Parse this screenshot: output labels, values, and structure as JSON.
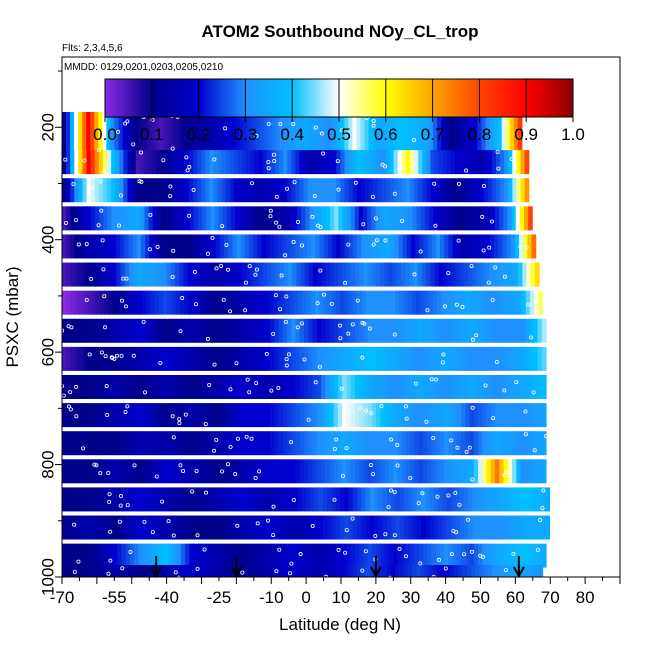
{
  "chart_data": {
    "type": "heatmap",
    "title": "ATOM2 Southbound NOy_CL_trop",
    "flights_label": "Flts: 2,3,4,5,6",
    "dates_label": "MMDD: 0129,0201,0203,0205,0210",
    "xlabel": "Latitude (deg N)",
    "ylabel": "PSXC (mbar)",
    "xlim": [
      -70,
      90
    ],
    "ylim": [
      1000,
      75
    ],
    "x_ticks": [
      -70,
      -55,
      -40,
      -25,
      -10,
      0,
      10,
      20,
      30,
      40,
      50,
      60,
      70,
      80
    ],
    "x_tick_labels": [
      "-70",
      "-55",
      "-40",
      "-25",
      "-10",
      "0",
      "10",
      "20",
      "30",
      "40",
      "50",
      "60",
      "70",
      "80"
    ],
    "y_ticks": [
      200,
      400,
      600,
      800,
      1000
    ],
    "y_tick_labels": [
      "200",
      "400",
      "600",
      "800",
      "1000"
    ],
    "colorbar": {
      "range": [
        0.0,
        1.0
      ],
      "ticks": [
        "0.0",
        "0.1",
        "0.2",
        "0.3",
        "0.4",
        "0.5",
        "0.6",
        "0.7",
        "0.8",
        "0.9",
        "1.0"
      ],
      "colors": [
        "#8a2be2",
        "#00008b",
        "#0000cd",
        "#1e90ff",
        "#00bfff",
        "#ffffff",
        "#ffff00",
        "#ffa500",
        "#ff4500",
        "#ff0000",
        "#8b0000"
      ]
    },
    "arrows_latitude": [
      -43,
      -20,
      20,
      61
    ],
    "layers": [
      {
        "p": 180,
        "lat_min": -54,
        "lat_max": -19,
        "values": [
          0.3,
          0.35,
          0.4,
          0.5,
          0.6,
          0.7,
          0.8,
          0.9,
          1.0
        ]
      },
      {
        "p": 212,
        "lat_min": -70,
        "lat_max": 63,
        "values": [
          0.1,
          0.9,
          0.3,
          0.1,
          0.05,
          0.1,
          0.15,
          0.2,
          0.25,
          0.3,
          0.35,
          0.3,
          0.5,
          0.35,
          0.4,
          0.35,
          0.1,
          0.2,
          0.4,
          0.9
        ]
      },
      {
        "p": 262,
        "lat_min": -70,
        "lat_max": 65,
        "values": [
          0.1,
          0.9,
          0.4,
          0.05,
          0.1,
          0.2,
          0.3,
          0.25,
          0.2,
          0.3,
          0.15,
          0.2,
          0.4,
          0.3,
          0.6,
          0.25,
          0.2,
          0.15,
          0.3,
          0.9
        ]
      },
      {
        "p": 312,
        "lat_min": -70,
        "lat_max": 65,
        "values": [
          0.1,
          0.5,
          0.4,
          0.1,
          0.1,
          0.2,
          0.3,
          0.2,
          0.15,
          0.2,
          0.3,
          0.3,
          0.2,
          0.25,
          0.3,
          0.2,
          0.1,
          0.2,
          0.3,
          0.8
        ]
      },
      {
        "p": 362,
        "lat_min": -70,
        "lat_max": 66,
        "values": [
          0.05,
          0.2,
          0.3,
          0.35,
          0.1,
          0.2,
          0.3,
          0.2,
          0.1,
          0.15,
          0.3,
          0.45,
          0.2,
          0.35,
          0.3,
          0.2,
          0.1,
          0.15,
          0.3,
          0.9
        ]
      },
      {
        "p": 412,
        "lat_min": -70,
        "lat_max": 67,
        "values": [
          0.05,
          0.15,
          0.2,
          0.3,
          0.1,
          0.1,
          0.2,
          0.3,
          0.2,
          0.25,
          0.3,
          0.2,
          0.3,
          0.35,
          0.2,
          0.3,
          0.15,
          0.2,
          0.3,
          0.85
        ]
      },
      {
        "p": 462,
        "lat_min": -70,
        "lat_max": 68,
        "values": [
          0.05,
          0.1,
          0.2,
          0.35,
          0.3,
          0.2,
          0.15,
          0.2,
          0.25,
          0.3,
          0.2,
          0.25,
          0.3,
          0.25,
          0.3,
          0.2,
          0.25,
          0.3,
          0.35,
          0.7
        ]
      },
      {
        "p": 512,
        "lat_min": -70,
        "lat_max": 69,
        "values": [
          0.0,
          0.05,
          0.1,
          0.2,
          0.25,
          0.2,
          0.1,
          0.15,
          0.2,
          0.25,
          0.3,
          0.25,
          0.3,
          0.3,
          0.25,
          0.3,
          0.35,
          0.3,
          0.35,
          0.6
        ]
      },
      {
        "p": 562,
        "lat_min": -70,
        "lat_max": 70,
        "values": [
          0.1,
          0.1,
          0.15,
          0.2,
          0.1,
          0.15,
          0.1,
          0.15,
          0.2,
          0.3,
          0.2,
          0.25,
          0.3,
          0.3,
          0.35,
          0.3,
          0.35,
          0.3,
          0.3,
          0.5
        ]
      },
      {
        "p": 612,
        "lat_min": -70,
        "lat_max": 70,
        "values": [
          0.05,
          0.1,
          0.1,
          0.15,
          0.2,
          0.15,
          0.1,
          0.15,
          0.2,
          0.25,
          0.3,
          0.35,
          0.4,
          0.35,
          0.3,
          0.35,
          0.3,
          0.3,
          0.35,
          0.45
        ]
      },
      {
        "p": 662,
        "lat_min": -70,
        "lat_max": 70,
        "values": [
          0.1,
          0.1,
          0.15,
          0.1,
          0.15,
          0.1,
          0.15,
          0.2,
          0.15,
          0.2,
          0.25,
          0.45,
          0.35,
          0.3,
          0.35,
          0.3,
          0.35,
          0.3,
          0.35,
          0.4
        ]
      },
      {
        "p": 712,
        "lat_min": -70,
        "lat_max": 70,
        "values": [
          0.1,
          0.1,
          0.15,
          0.2,
          0.1,
          0.15,
          0.1,
          0.2,
          0.2,
          0.25,
          0.3,
          0.5,
          0.45,
          0.35,
          0.3,
          0.35,
          0.25,
          0.3,
          0.3,
          0.35
        ]
      },
      {
        "p": 762,
        "lat_min": -70,
        "lat_max": 70,
        "values": [
          0.1,
          0.1,
          0.1,
          0.15,
          0.15,
          0.1,
          0.15,
          0.2,
          0.2,
          0.25,
          0.3,
          0.35,
          0.3,
          0.3,
          0.25,
          0.3,
          0.25,
          0.35,
          0.3,
          0.35
        ]
      },
      {
        "p": 812,
        "lat_min": -70,
        "lat_max": 70,
        "values": [
          0.1,
          0.1,
          0.15,
          0.1,
          0.2,
          0.15,
          0.1,
          0.15,
          0.2,
          0.2,
          0.25,
          0.3,
          0.25,
          0.3,
          0.25,
          0.3,
          0.35,
          0.75,
          0.3,
          0.35
        ]
      },
      {
        "p": 862,
        "lat_min": -70,
        "lat_max": 71,
        "values": [
          0.1,
          0.1,
          0.15,
          0.2,
          0.15,
          0.1,
          0.15,
          0.2,
          0.15,
          0.2,
          0.25,
          0.2,
          0.3,
          0.25,
          0.3,
          0.25,
          0.3,
          0.35,
          0.4,
          0.35
        ]
      },
      {
        "p": 912,
        "lat_min": -70,
        "lat_max": 71,
        "values": [
          0.1,
          0.15,
          0.1,
          0.2,
          0.15,
          0.1,
          0.1,
          0.15,
          0.2,
          0.15,
          0.2,
          0.25,
          0.2,
          0.25,
          0.2,
          0.25,
          0.3,
          0.3,
          0.35,
          0.35
        ]
      },
      {
        "p": 962,
        "lat_min": -70,
        "lat_max": 70,
        "values": [
          0.1,
          0.1,
          0.2,
          0.3,
          0.4,
          0.2,
          0.15,
          0.1,
          0.15,
          0.2,
          0.15,
          0.2,
          0.25,
          0.2,
          0.25,
          0.3,
          0.25,
          0.35,
          0.4,
          0.35
        ]
      },
      {
        "p": 1000,
        "lat_min": -70,
        "lat_max": 69,
        "values": [
          0.1,
          0.1,
          0.15,
          0.1,
          0.15,
          0.2,
          0.15,
          0.1,
          0.15,
          0.2,
          0.15,
          0.2,
          0.25,
          0.2,
          0.25,
          0.2,
          0.25,
          0.3,
          0.35,
          0.3
        ]
      }
    ]
  }
}
